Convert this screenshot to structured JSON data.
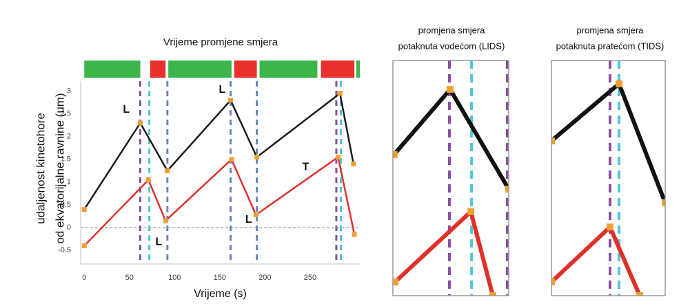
{
  "chart_data": [
    {
      "type": "line",
      "title": [
        "Vrijeme promjene smjera"
      ],
      "xlabel": "Vrijeme (s)",
      "ylabel": [
        "udaljenost kinetohore",
        "od ekvatorijalne ravnine (um)"
      ],
      "xlim": [
        -4,
        305
      ],
      "ylim": [
        -0.8,
        3.22
      ],
      "xticks": [
        0,
        50,
        100,
        150,
        200,
        250
      ],
      "yticks": [
        -0.5,
        0,
        0.5,
        1,
        1.5,
        2,
        2.5,
        3
      ],
      "hline": 0,
      "marker_color": "#f0a030",
      "line_width": 2.5,
      "series": [
        {
          "color": "#1a1a1a",
          "x": [
            0,
            62,
            92,
            162,
            191,
            283,
            298
          ],
          "values": [
            0.4,
            2.3,
            1.25,
            2.8,
            1.55,
            2.95,
            1.4
          ]
        },
        {
          "color": "#e0302a",
          "x": [
            0,
            71,
            90,
            163,
            190,
            281,
            299
          ],
          "values": [
            -0.4,
            1.05,
            0.15,
            1.5,
            0.28,
            1.55,
            -0.15
          ]
        }
      ],
      "events": [
        {
          "x": 62,
          "color": "#8a4fa0"
        },
        {
          "x": 72,
          "color": "#4fc6d6"
        },
        {
          "x": 92,
          "color": "#6a86b8"
        },
        {
          "x": 162,
          "color": "#6a86b8"
        },
        {
          "x": 191,
          "color": "#6a86b8"
        },
        {
          "x": 279,
          "color": "#8a4fa0"
        },
        {
          "x": 284,
          "color": "#4fc6d6"
        }
      ],
      "timeline": [
        {
          "start": 0,
          "end": 62,
          "color": "#3cb54a"
        },
        {
          "start": 73,
          "end": 90,
          "color": "#e8302c"
        },
        {
          "start": 93,
          "end": 163,
          "color": "#3cb54a"
        },
        {
          "start": 166,
          "end": 191,
          "color": "#e8302c"
        },
        {
          "start": 194,
          "end": 258,
          "color": "#3cb54a"
        },
        {
          "start": 262,
          "end": 299,
          "color": "#e8302c"
        },
        {
          "start": 301,
          "end": 305,
          "color": "#3cb54a"
        }
      ],
      "annotations": [
        {
          "text": "L",
          "x": 46.6,
          "y": 2.59,
          "color": "#1a1a1a"
        },
        {
          "text": "L",
          "x": 152.7,
          "y": 3.03,
          "color": "#1a1a1a"
        },
        {
          "text": "T",
          "x": 245,
          "y": 1.33,
          "color": "#e0302a"
        },
        {
          "text": "L",
          "x": 82.4,
          "y": -0.32,
          "color": "#1a1a1a"
        },
        {
          "text": "L",
          "x": 182,
          "y": 0.17,
          "color": "#1a1a1a"
        }
      ]
    },
    {
      "type": "line",
      "title": [
        "promjena smjera",
        "potaknuta vodećom (LIDS)"
      ],
      "xlim": [
        0,
        100
      ],
      "ylim": [
        0,
        100
      ],
      "marker_color": "#f0a030",
      "line_width": 6,
      "series": [
        {
          "color": "#111111",
          "x": [
            1,
            49.4,
            100
          ],
          "values": [
            60,
            87.7,
            45.3
          ]
        },
        {
          "color": "#e0302a",
          "x": [
            1.8,
            67.3,
            86.3
          ],
          "values": [
            5.8,
            35.7,
            0
          ]
        }
      ],
      "events": [
        {
          "x": 48.8,
          "color": "#8a4fa0"
        },
        {
          "x": 67.9,
          "color": "#4fc6d6"
        },
        {
          "x": 98.8,
          "color": "#8a4fa0"
        }
      ]
    },
    {
      "type": "line",
      "title": [
        "promjena smjera",
        "potaknuta pratećom (TIDS)"
      ],
      "xlim": [
        0,
        100
      ],
      "ylim": [
        0,
        100
      ],
      "marker_color": "#f0a030",
      "line_width": 6,
      "series": [
        {
          "color": "#111111",
          "x": [
            0,
            59.4,
            100
          ],
          "values": [
            65.8,
            90.1,
            39.5
          ]
        },
        {
          "color": "#e0302a",
          "x": [
            0,
            51.5,
            77.6
          ],
          "values": [
            5.8,
            29.2,
            0
          ]
        }
      ],
      "events": [
        {
          "x": 51.5,
          "color": "#8a4fa0"
        },
        {
          "x": 59.4,
          "color": "#4fc6d6"
        }
      ]
    }
  ]
}
